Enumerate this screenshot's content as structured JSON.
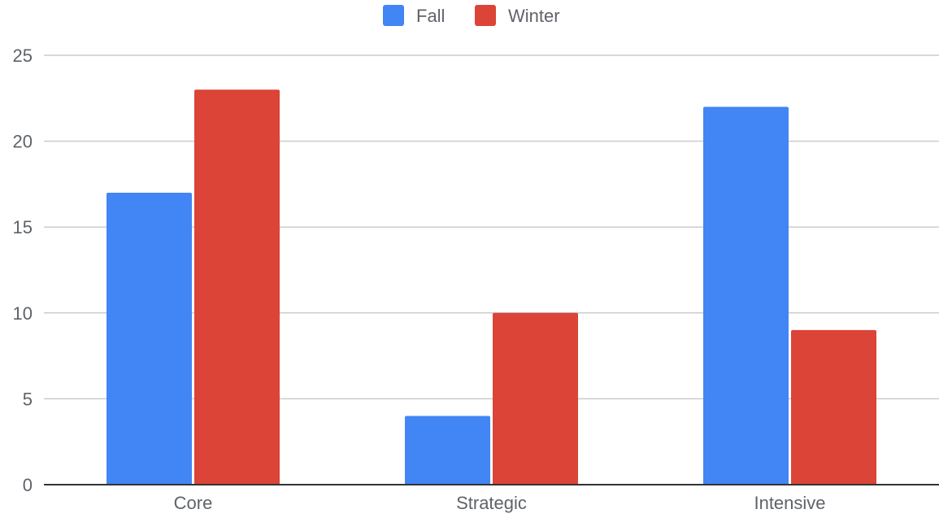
{
  "chart_data": {
    "type": "bar",
    "title": "",
    "xlabel": "",
    "ylabel": "",
    "categories": [
      "Core",
      "Strategic",
      "Intensive"
    ],
    "series": [
      {
        "name": "Fall",
        "values": [
          17,
          4,
          22
        ],
        "color": "#4285f4"
      },
      {
        "name": "Winter",
        "values": [
          23,
          10,
          9
        ],
        "color": "#db4437"
      }
    ],
    "ylim": [
      0,
      25
    ],
    "yticks": [
      0,
      5,
      10,
      15,
      20,
      25
    ],
    "grid": true,
    "legend_position": "top-center"
  }
}
